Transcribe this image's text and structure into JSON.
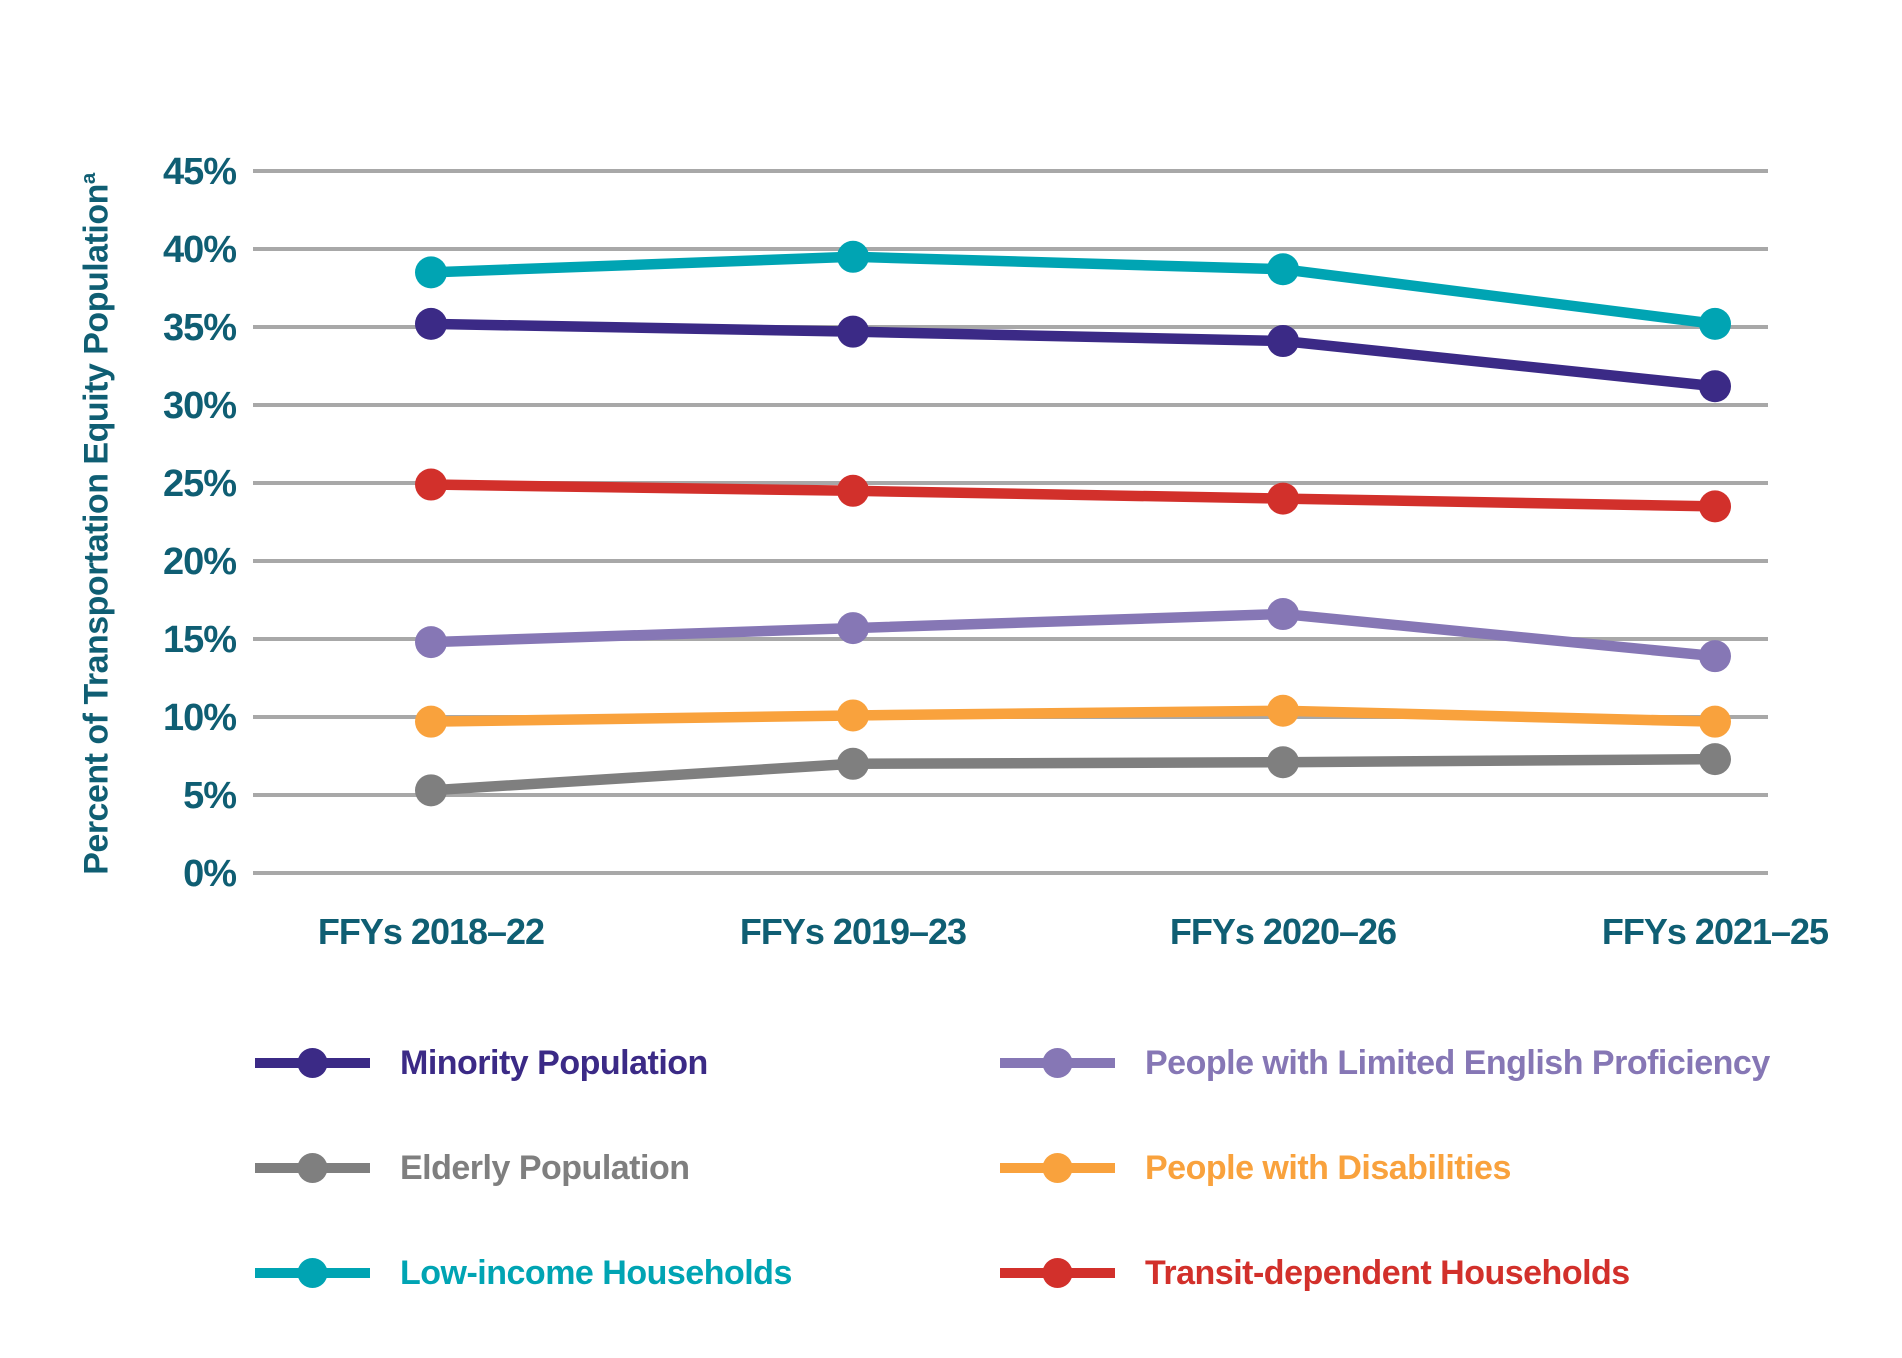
{
  "chart_data": {
    "type": "line",
    "title": "",
    "ylabel": "Percent of Transportation Equity Population",
    "ylabel_superscript": "a",
    "xlabel": "",
    "ylim": [
      0,
      45
    ],
    "ytick_step": 5,
    "ytick_suffix": "%",
    "grid": true,
    "legend_position": "bottom",
    "categories": [
      "FFYs 2018–22",
      "FFYs 2019–23",
      "FFYs 2020–26",
      "FFYs 2021–25"
    ],
    "series": [
      {
        "name": "Minority Population",
        "color": "#3b2a86",
        "values": [
          35.2,
          34.7,
          34.1,
          31.2
        ]
      },
      {
        "name": "Elderly Population",
        "color": "#7f7f7f",
        "values": [
          5.3,
          7.0,
          7.1,
          7.3
        ]
      },
      {
        "name": "Low-income Households",
        "color": "#00a4b3",
        "values": [
          38.5,
          39.5,
          38.7,
          35.2
        ]
      },
      {
        "name": "People with Limited English Proficiency",
        "color": "#8677b5",
        "values": [
          14.8,
          15.7,
          16.6,
          13.9
        ]
      },
      {
        "name": "People with Disabilities",
        "color": "#f9a23d",
        "values": [
          9.7,
          10.1,
          10.4,
          9.7
        ]
      },
      {
        "name": "Transit-dependent Households",
        "color": "#d2302b",
        "values": [
          24.9,
          24.5,
          24.0,
          23.5
        ]
      }
    ],
    "legend_columns": [
      [
        "Minority Population",
        "Elderly Population",
        "Low-income Households"
      ],
      [
        "People with Limited English Proficiency",
        "People with Disabilities",
        "Transit-dependent Households"
      ]
    ]
  },
  "colors": {
    "axis_text": "#0f5e73",
    "gridline": "#a8a8a8",
    "background": "#ffffff"
  }
}
